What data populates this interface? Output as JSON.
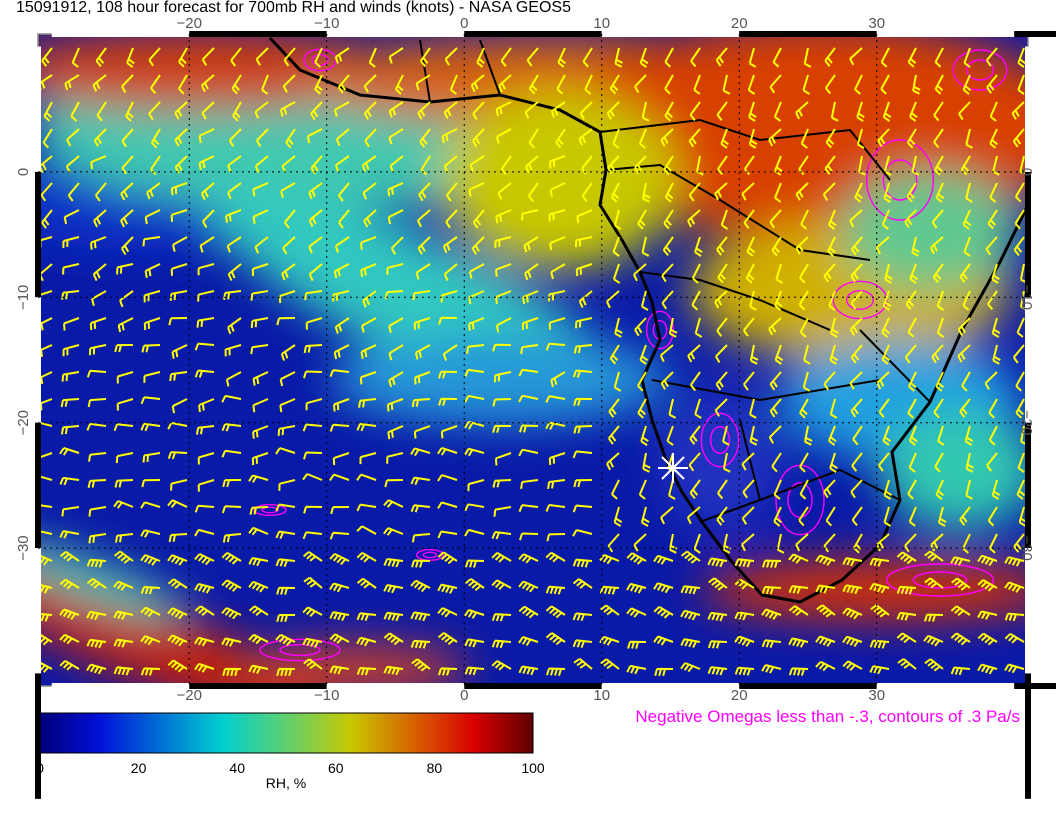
{
  "title": "15091912, 108 hour forecast for 700mb RH and winds (knots) - NASA GEOS5",
  "map": {
    "lon_ticks": [
      "−20",
      "−10",
      "0",
      "10",
      "20",
      "30"
    ],
    "lat_ticks": [
      "0",
      "−10",
      "−20",
      "−30"
    ],
    "lon_range": [
      -31,
      41
    ],
    "lat_range": [
      11,
      -41
    ],
    "wind_barb_color": "#ffff00",
    "omega_contour_color": "#ff00ff",
    "coastline_color": "#000000",
    "marker": "white-star"
  },
  "omega_note": "Negative Omegas less than -.3, contours of .3 Pa/s",
  "colorbar": {
    "label": "RH, %",
    "ticks": [
      "0",
      "20",
      "40",
      "60",
      "80",
      "100"
    ],
    "stops": [
      {
        "value": 0,
        "color": "#00007a"
      },
      {
        "value": 12,
        "color": "#0010d8"
      },
      {
        "value": 37,
        "color": "#00d0d0"
      },
      {
        "value": 50,
        "color": "#60d070"
      },
      {
        "value": 63,
        "color": "#c8c800"
      },
      {
        "value": 78,
        "color": "#d85000"
      },
      {
        "value": 88,
        "color": "#d80000"
      },
      {
        "value": 100,
        "color": "#600000"
      }
    ]
  }
}
